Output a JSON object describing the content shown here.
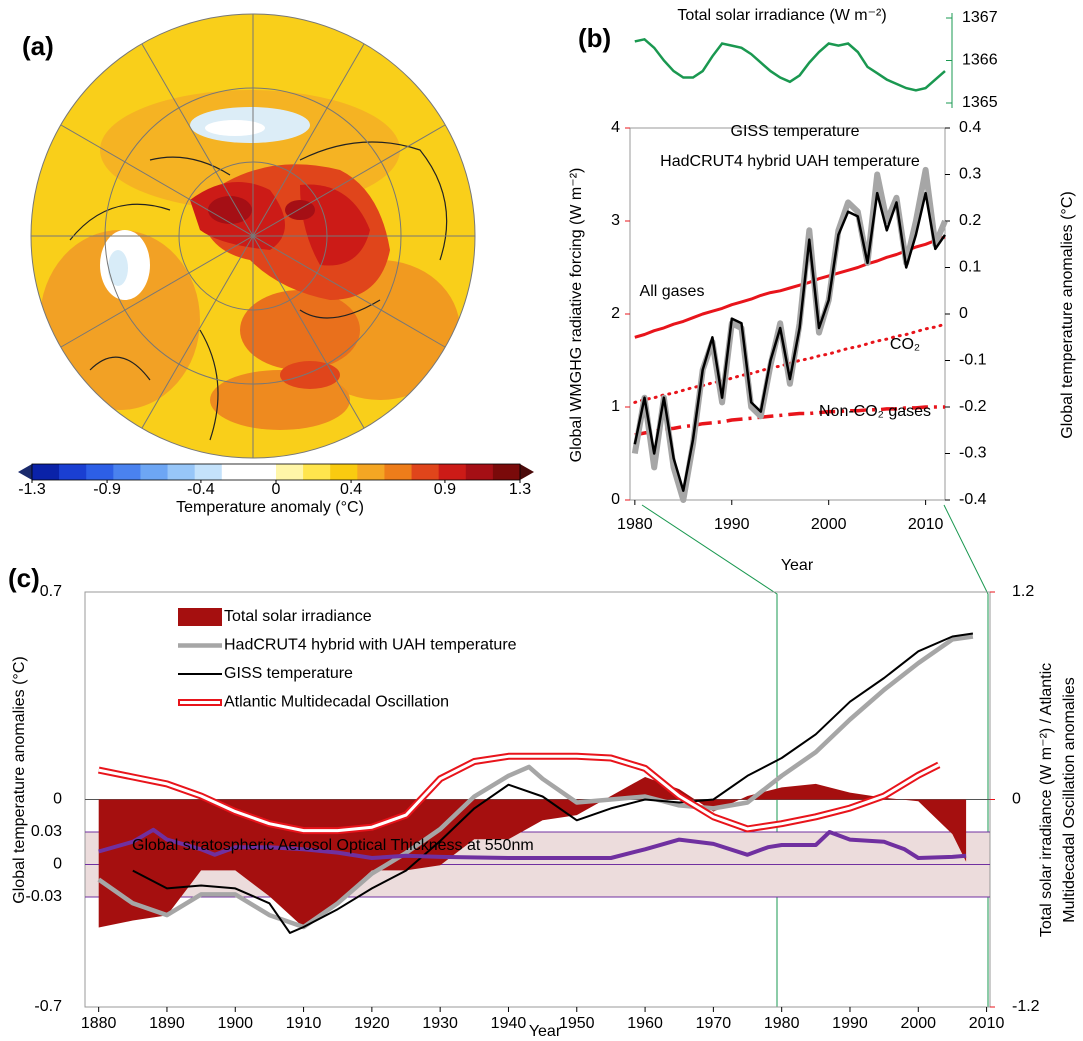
{
  "chart_data": [
    {
      "type": "map",
      "panel": "(a)",
      "colorbar": {
        "label": "Temperature anomaly (°C)",
        "lim": [
          -1.3,
          1.3
        ],
        "ticks": [
          -1.3,
          -0.9,
          -0.4,
          0,
          0.4,
          0.9,
          1.3
        ],
        "colors": [
          "#0a22a8",
          "#1a3fd2",
          "#2d5fe6",
          "#4a82ef",
          "#6da6f4",
          "#97c6f8",
          "#c4e2fb",
          "#ffffff",
          "#ffffff",
          "#fff6a8",
          "#ffe54d",
          "#f9cb10",
          "#f5a623",
          "#ee7d1a",
          "#e0451b",
          "#cc1b17",
          "#a50f15",
          "#7a0a0a"
        ],
        "under_color": "#1a2a6c",
        "over_color": "#4a0a0a"
      }
    },
    {
      "type": "line",
      "panel": "(b)",
      "title": "Total solar irradiance (W m⁻²)",
      "color": "#1a9850",
      "x": [
        1980,
        1981,
        1982,
        1983,
        1984,
        1985,
        1986,
        1987,
        1988,
        1989,
        1990,
        1991,
        1992,
        1993,
        1994,
        1995,
        1996,
        1997,
        1998,
        1999,
        2000,
        2001,
        2002,
        2003,
        2004,
        2005,
        2006,
        2007,
        2008,
        2009,
        2010,
        2011,
        2012
      ],
      "values": [
        1366.45,
        1366.5,
        1366.3,
        1366.0,
        1365.75,
        1365.6,
        1365.6,
        1365.75,
        1366.1,
        1366.4,
        1366.35,
        1366.3,
        1366.15,
        1365.95,
        1365.75,
        1365.6,
        1365.5,
        1365.65,
        1365.95,
        1366.2,
        1366.4,
        1366.35,
        1366.4,
        1366.2,
        1365.85,
        1365.7,
        1365.55,
        1365.45,
        1365.35,
        1365.3,
        1365.35,
        1365.55,
        1365.75
      ],
      "xlim": [
        1979.5,
        2012
      ],
      "ylim": [
        1365,
        1367
      ],
      "yticks": [
        1365,
        1366,
        1367
      ]
    },
    {
      "type": "line",
      "x": [
        1980,
        1981,
        1982,
        1983,
        1984,
        1985,
        1986,
        1987,
        1988,
        1989,
        1990,
        1991,
        1992,
        1993,
        1994,
        1995,
        1996,
        1997,
        1998,
        1999,
        2000,
        2001,
        2002,
        2003,
        2004,
        2005,
        2006,
        2007,
        2008,
        2009,
        2010,
        2011,
        2012
      ],
      "xlim": [
        1979.5,
        2012
      ],
      "xticks": [
        1980,
        1990,
        2000,
        2010
      ],
      "xlabel": "Year",
      "ylabel": "Global WMGHG radiative forcing (W m⁻²)",
      "ylim": [
        0,
        4
      ],
      "yticks": [
        0,
        1,
        2,
        3,
        4
      ],
      "ycolor": "#e8141b",
      "y2label": "Global temperature anomalies (°C)",
      "y2lim": [
        -0.4,
        0.4
      ],
      "y2ticks": [
        -0.4,
        -0.3,
        -0.2,
        -0.1,
        0,
        0.1,
        0.2,
        0.3,
        0.4
      ],
      "series": [
        {
          "name": "All gases",
          "color": "#e8141b",
          "dash": "solid",
          "width": 3,
          "values": [
            1.75,
            1.78,
            1.82,
            1.85,
            1.89,
            1.92,
            1.96,
            2.0,
            2.03,
            2.06,
            2.1,
            2.13,
            2.16,
            2.2,
            2.23,
            2.25,
            2.28,
            2.31,
            2.34,
            2.38,
            2.41,
            2.44,
            2.47,
            2.5,
            2.54,
            2.57,
            2.61,
            2.64,
            2.68,
            2.72,
            2.75,
            2.79,
            2.83
          ]
        },
        {
          "name": "CO₂",
          "color": "#e8141b",
          "dash": "dotted",
          "width": 3,
          "values": [
            1.05,
            1.08,
            1.1,
            1.13,
            1.15,
            1.18,
            1.21,
            1.23,
            1.26,
            1.28,
            1.31,
            1.34,
            1.36,
            1.39,
            1.42,
            1.44,
            1.47,
            1.5,
            1.52,
            1.55,
            1.57,
            1.6,
            1.63,
            1.65,
            1.68,
            1.71,
            1.73,
            1.76,
            1.78,
            1.81,
            1.84,
            1.86,
            1.89
          ]
        },
        {
          "name": "Non-CO₂ gases",
          "color": "#e8141b",
          "dash": "dashdot",
          "width": 3.5,
          "values": [
            0.7,
            0.72,
            0.74,
            0.76,
            0.77,
            0.79,
            0.8,
            0.82,
            0.83,
            0.84,
            0.86,
            0.87,
            0.88,
            0.89,
            0.9,
            0.91,
            0.92,
            0.93,
            0.93,
            0.94,
            0.95,
            0.95,
            0.96,
            0.96,
            0.97,
            0.97,
            0.98,
            0.98,
            0.99,
            0.99,
            1.0,
            1.0,
            1.0
          ]
        },
        {
          "name": "HadCRUT4 hybrid UAH temperature",
          "color": "#a6a6a6",
          "dash": "solid",
          "width": 6,
          "axis": "y2",
          "values": [
            -0.3,
            -0.18,
            -0.33,
            -0.18,
            -0.33,
            -0.4,
            -0.28,
            -0.12,
            -0.06,
            -0.19,
            -0.02,
            -0.03,
            -0.2,
            -0.22,
            -0.11,
            -0.02,
            -0.15,
            -0.02,
            0.18,
            -0.04,
            0.03,
            0.18,
            0.24,
            0.22,
            0.11,
            0.3,
            0.2,
            0.25,
            0.11,
            0.2,
            0.31,
            0.15,
            0.2
          ]
        },
        {
          "name": "GISS temperature",
          "color": "#000000",
          "dash": "solid",
          "width": 2.5,
          "axis": "y2",
          "values": [
            -0.28,
            -0.18,
            -0.3,
            -0.18,
            -0.31,
            -0.38,
            -0.27,
            -0.12,
            -0.05,
            -0.18,
            -0.01,
            -0.02,
            -0.19,
            -0.21,
            -0.1,
            -0.03,
            -0.14,
            -0.03,
            0.16,
            -0.03,
            0.03,
            0.17,
            0.22,
            0.21,
            0.11,
            0.26,
            0.18,
            0.24,
            0.1,
            0.17,
            0.26,
            0.14,
            0.17
          ]
        }
      ]
    },
    {
      "type": "line",
      "panel": "(c)",
      "xlim": [
        1878,
        2010.5
      ],
      "xticks": [
        1880,
        1890,
        1900,
        1910,
        1920,
        1930,
        1940,
        1950,
        1960,
        1970,
        1980,
        1990,
        2000,
        2010
      ],
      "xlabel": "Year",
      "ylabel": "Global temperature anomalies (°C)",
      "ylim": [
        -0.7,
        0.7
      ],
      "yticks": [
        -0.7,
        0,
        0.7
      ],
      "y2label": [
        "Total solar irradiance (W m⁻²)  / Atlantic",
        "Multidecadal Oscillation anomalies"
      ],
      "y2lim": [
        -1.2,
        1.2
      ],
      "y2ticks": [
        -1.2,
        0,
        1.2
      ],
      "y2color": "#e8141b",
      "y3lim": [
        -0.03,
        0.03
      ],
      "y3ticks": [
        -0.03,
        0,
        0.03
      ],
      "y3color": "#7030a0",
      "y3band_color": "#ecdcdc",
      "series": [
        {
          "name": "Total solar irradiance",
          "kind": "area",
          "axis": "y2",
          "color": "#a50f0f",
          "x": [
            1880,
            1885,
            1890,
            1895,
            1900,
            1905,
            1910,
            1915,
            1920,
            1925,
            1930,
            1935,
            1940,
            1945,
            1950,
            1955,
            1960,
            1965,
            1970,
            1975,
            1980,
            1985,
            1990,
            1995,
            2000,
            2005,
            2007
          ],
          "values": [
            -0.74,
            -0.7,
            -0.67,
            -0.41,
            -0.41,
            -0.56,
            -0.74,
            -0.59,
            -0.41,
            -0.41,
            -0.38,
            -0.23,
            -0.23,
            -0.12,
            -0.09,
            0.02,
            0.13,
            0.06,
            -0.07,
            0.02,
            0.07,
            0.09,
            0.04,
            0.01,
            -0.01,
            -0.2,
            -0.36
          ]
        },
        {
          "name": "HadCRUT4 hybrid with UAH  temperature",
          "kind": "line",
          "color": "#a6a6a6",
          "width": 4.5,
          "x": [
            1880,
            1885,
            1890,
            1895,
            1900,
            1905,
            1910,
            1915,
            1920,
            1925,
            1930,
            1935,
            1940,
            1943,
            1945,
            1950,
            1955,
            1960,
            1965,
            1970,
            1975,
            1980,
            1985,
            1990,
            1995,
            2000,
            2005,
            2008
          ],
          "values": [
            -0.27,
            -0.35,
            -0.39,
            -0.32,
            -0.32,
            -0.39,
            -0.43,
            -0.35,
            -0.25,
            -0.18,
            -0.1,
            0.01,
            0.08,
            0.11,
            0.07,
            -0.01,
            0.0,
            0.01,
            -0.02,
            -0.03,
            -0.01,
            0.08,
            0.16,
            0.27,
            0.37,
            0.46,
            0.54,
            0.55
          ]
        },
        {
          "name": "GISS temperature",
          "kind": "line",
          "color": "#000000",
          "width": 2,
          "x": [
            1885,
            1890,
            1895,
            1900,
            1905,
            1908,
            1910,
            1915,
            1920,
            1925,
            1930,
            1935,
            1940,
            1945,
            1950,
            1955,
            1960,
            1965,
            1970,
            1975,
            1980,
            1985,
            1990,
            1995,
            2000,
            2005,
            2008
          ],
          "values": [
            -0.24,
            -0.3,
            -0.29,
            -0.3,
            -0.35,
            -0.45,
            -0.43,
            -0.37,
            -0.3,
            -0.24,
            -0.14,
            -0.03,
            0.05,
            0.01,
            -0.07,
            -0.03,
            0.0,
            -0.01,
            0.0,
            0.08,
            0.14,
            0.22,
            0.33,
            0.41,
            0.5,
            0.55,
            0.56
          ]
        },
        {
          "name": "Atlantic Multidecadal Oscillation",
          "kind": "double-line",
          "axis": "y2",
          "color": "#e8141b",
          "width": 7,
          "x": [
            1880,
            1885,
            1890,
            1895,
            1900,
            1905,
            1910,
            1915,
            1920,
            1925,
            1930,
            1935,
            1940,
            1945,
            1950,
            1955,
            1960,
            1965,
            1970,
            1975,
            1980,
            1985,
            1990,
            1995,
            2000,
            2003
          ],
          "values": [
            0.17,
            0.13,
            0.09,
            0.02,
            -0.07,
            -0.14,
            -0.18,
            -0.18,
            -0.16,
            -0.09,
            0.12,
            0.22,
            0.25,
            0.25,
            0.25,
            0.24,
            0.18,
            0.02,
            -0.1,
            -0.17,
            -0.14,
            -0.1,
            -0.05,
            0.02,
            0.14,
            0.2
          ]
        },
        {
          "name": "Global stratospheric Aerosol Optical Thickness at 550nm",
          "kind": "line",
          "axis": "y3",
          "color": "#7030a0",
          "width": 4,
          "label_inline": true,
          "x": [
            1880,
            1885,
            1888,
            1890,
            1895,
            1897,
            1900,
            1905,
            1910,
            1915,
            1920,
            1925,
            1930,
            1940,
            1950,
            1955,
            1960,
            1965,
            1970,
            1975,
            1978,
            1980,
            1985,
            1987,
            1990,
            1995,
            1998,
            2000,
            2005,
            2007
          ],
          "values": [
            0.012,
            0.021,
            0.032,
            0.023,
            0.014,
            0.009,
            0.016,
            0.016,
            0.014,
            0.011,
            0.006,
            0.008,
            0.007,
            0.006,
            0.006,
            0.006,
            0.014,
            0.023,
            0.019,
            0.009,
            0.016,
            0.018,
            0.018,
            0.03,
            0.023,
            0.021,
            0.014,
            0.006,
            0.007,
            0.008
          ]
        }
      ]
    }
  ]
}
